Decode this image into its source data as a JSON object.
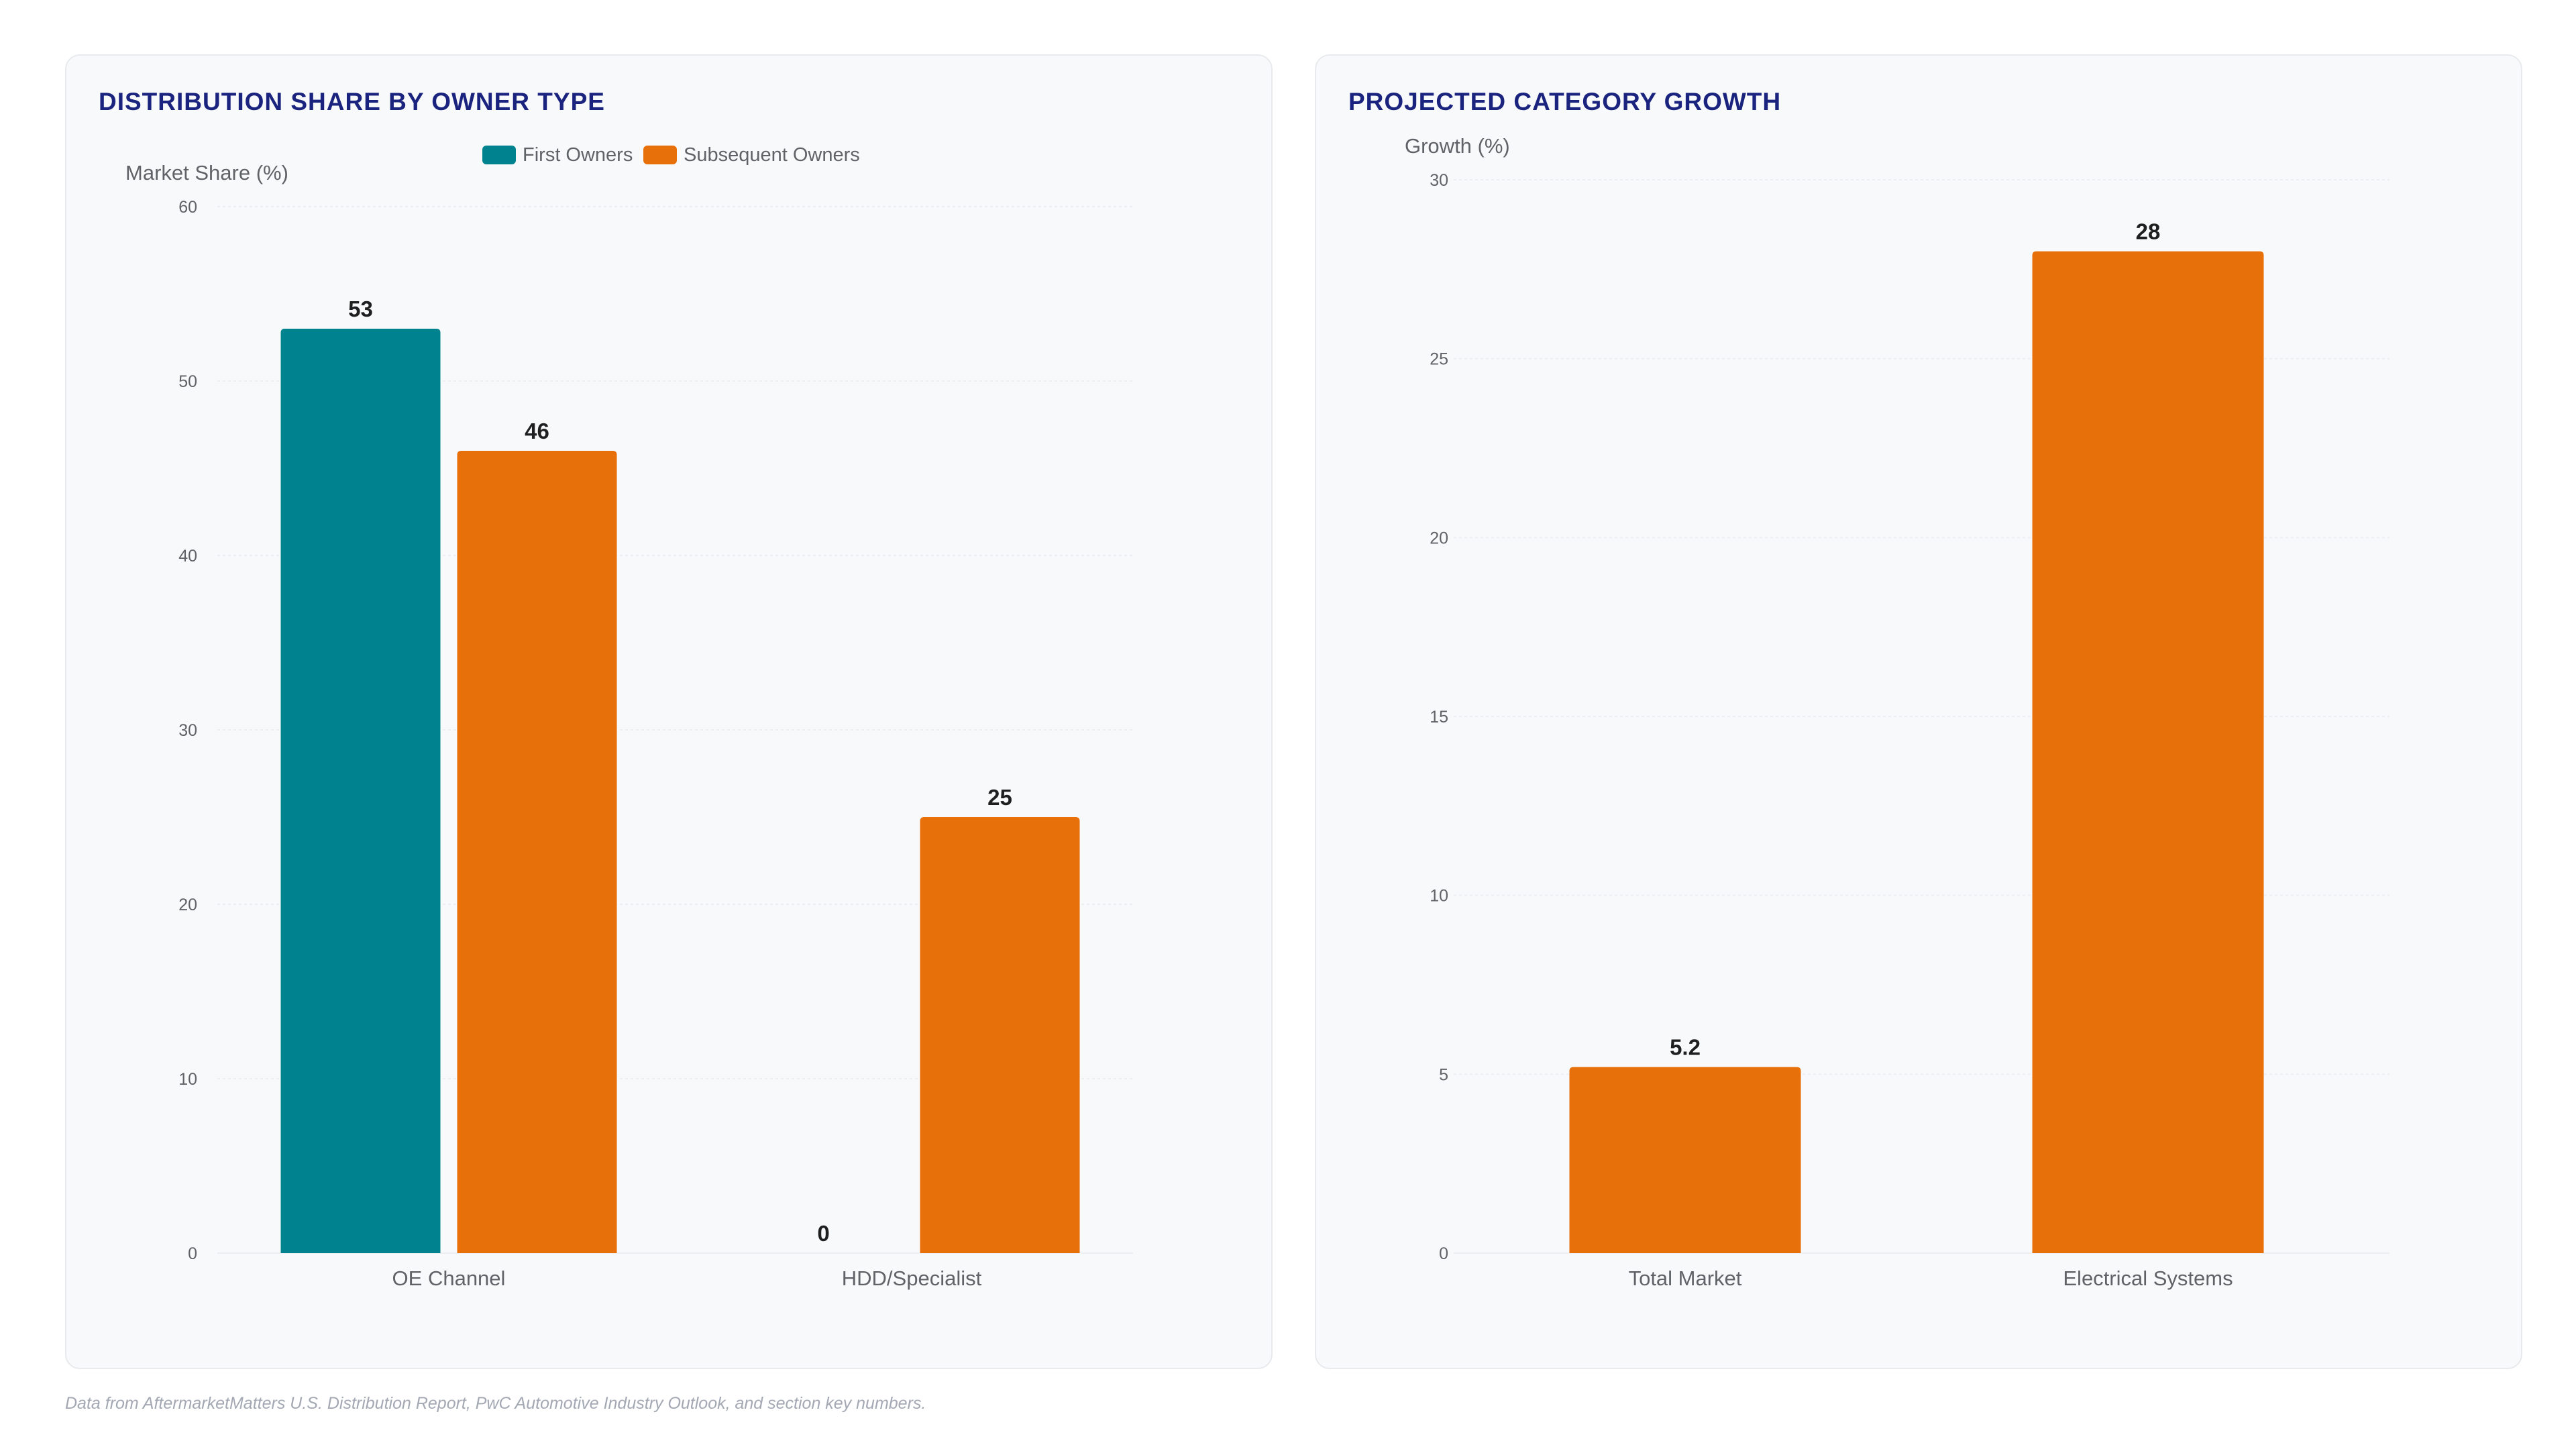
{
  "colors": {
    "first_owners": "#00838f",
    "subsequent_owners": "#e8700a",
    "title": "#1a237e",
    "grid": "#eceef2",
    "axis_text": "#5f6368",
    "value_label": "#1f1f1f"
  },
  "footnote": "Data from AftermarketMatters U.S. Distribution Report, PwC Automotive Industry Outlook, and section key numbers.",
  "chart_data": [
    {
      "type": "bar",
      "title": "DISTRIBUTION SHARE BY OWNER TYPE",
      "ylabel": "Market Share (%)",
      "xlabel": "",
      "categories": [
        "OE Channel",
        "HDD/Specialist"
      ],
      "series": [
        {
          "name": "First Owners",
          "values": [
            53,
            0
          ]
        },
        {
          "name": "Subsequent Owners",
          "values": [
            46,
            25
          ]
        }
      ],
      "ylim": [
        0,
        60
      ],
      "yticks": [
        0,
        10,
        20,
        30,
        40,
        50,
        60
      ],
      "legend": "top-center",
      "grid": true
    },
    {
      "type": "bar",
      "title": "PROJECTED CATEGORY GROWTH",
      "ylabel": "Growth (%)",
      "xlabel": "",
      "categories": [
        "Total Market",
        "Electrical Systems"
      ],
      "series": [
        {
          "values": [
            5.2,
            28
          ]
        }
      ],
      "value_labels": [
        "5.2",
        "28"
      ],
      "ylim": [
        0,
        30
      ],
      "yticks": [
        0,
        5,
        10,
        15,
        20,
        25,
        30
      ],
      "legend": "none",
      "grid": true
    }
  ]
}
